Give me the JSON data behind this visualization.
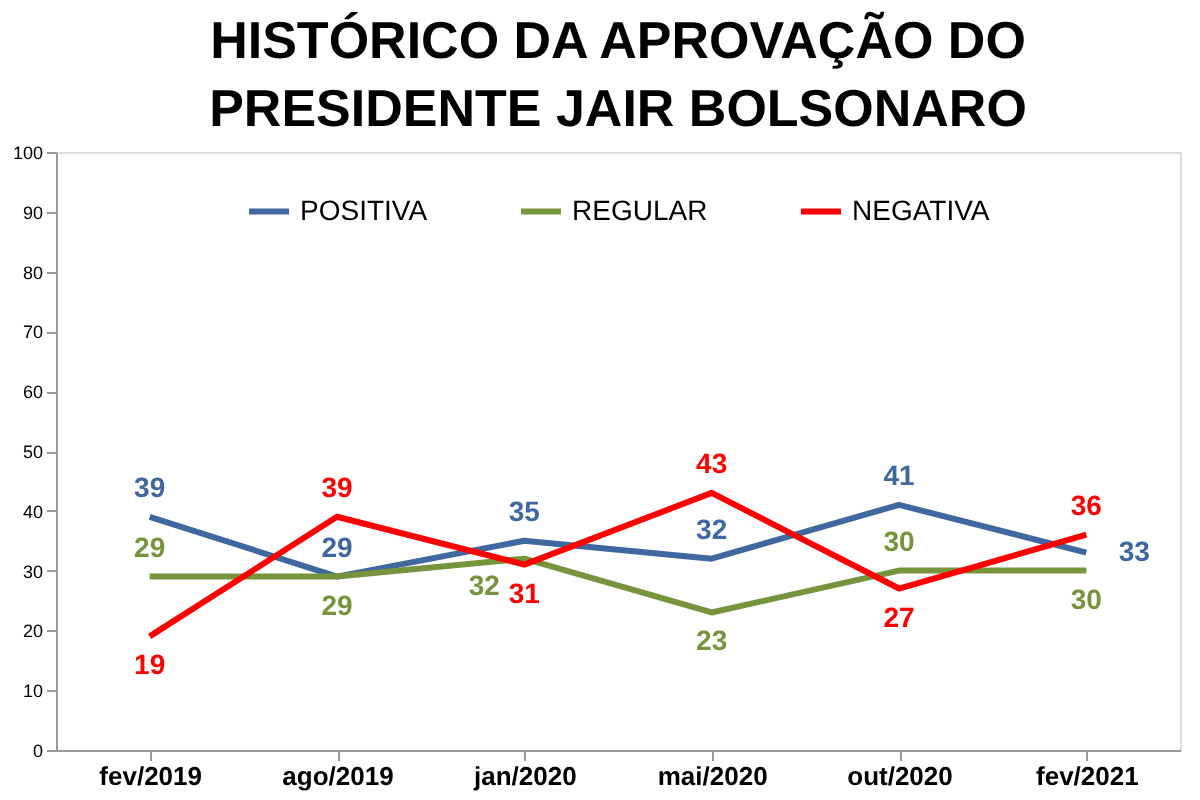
{
  "chart_data": {
    "type": "line",
    "title": "HISTÓRICO DA APROVAÇÃO DO PRESIDENTE JAIR BOLSONARO",
    "categories": [
      "fev/2019",
      "ago/2019",
      "jan/2020",
      "mai/2020",
      "out/2020",
      "fev/2021"
    ],
    "series": [
      {
        "name": "POSITIVA",
        "color": "#3f67a0",
        "values": [
          39,
          29,
          35,
          32,
          41,
          33
        ]
      },
      {
        "name": "REGULAR",
        "color": "#77933c",
        "values": [
          29,
          29,
          32,
          23,
          30,
          30
        ]
      },
      {
        "name": "NEGATIVA",
        "color": "#ff0000",
        "values": [
          19,
          39,
          31,
          43,
          27,
          36
        ]
      }
    ],
    "ylim": [
      0,
      100
    ],
    "yticks": [
      0,
      10,
      20,
      30,
      40,
      50,
      60,
      70,
      80,
      90,
      100
    ],
    "grid": false,
    "legend": "top",
    "data_labels": true,
    "marker": "none",
    "line_style": "solid"
  }
}
